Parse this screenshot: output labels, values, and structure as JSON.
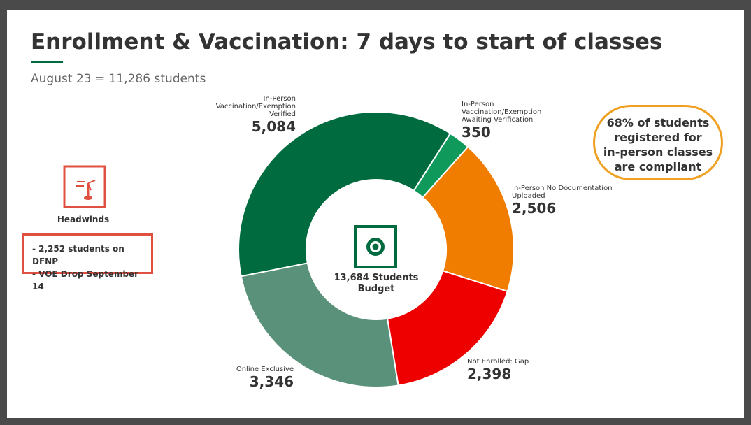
{
  "chart_data": {
    "type": "donut",
    "title": "Enrollment & Vaccination: 7 days to start of classes",
    "subtitle": "August 23 = 11,286 students",
    "categories": [
      "In-Person Vaccination/Exemption Verified",
      "In-Person Vaccination/Exemption Awaiting Verification",
      "In-Person No Documentation Uploaded",
      "Not Enrolled: Gap",
      "Online Exclusive"
    ],
    "values": [
      5084,
      350,
      2506,
      2398,
      3346
    ],
    "value_labels": [
      "5,084",
      "350",
      "2,506",
      "2,398",
      "3,346"
    ],
    "colors": [
      "#006b3f",
      "#0f9a5c",
      "#f07c00",
      "#ee0000",
      "#5a917a"
    ],
    "center_label": [
      "13,684 Students",
      "Budget"
    ],
    "callout": [
      "68% of students",
      "registered for",
      "in-person classes",
      "are compliant"
    ],
    "headwinds": {
      "title": "Headwinds",
      "items": [
        "- 2,252 students on DFNP",
        "- VOE Drop September 14"
      ]
    }
  }
}
